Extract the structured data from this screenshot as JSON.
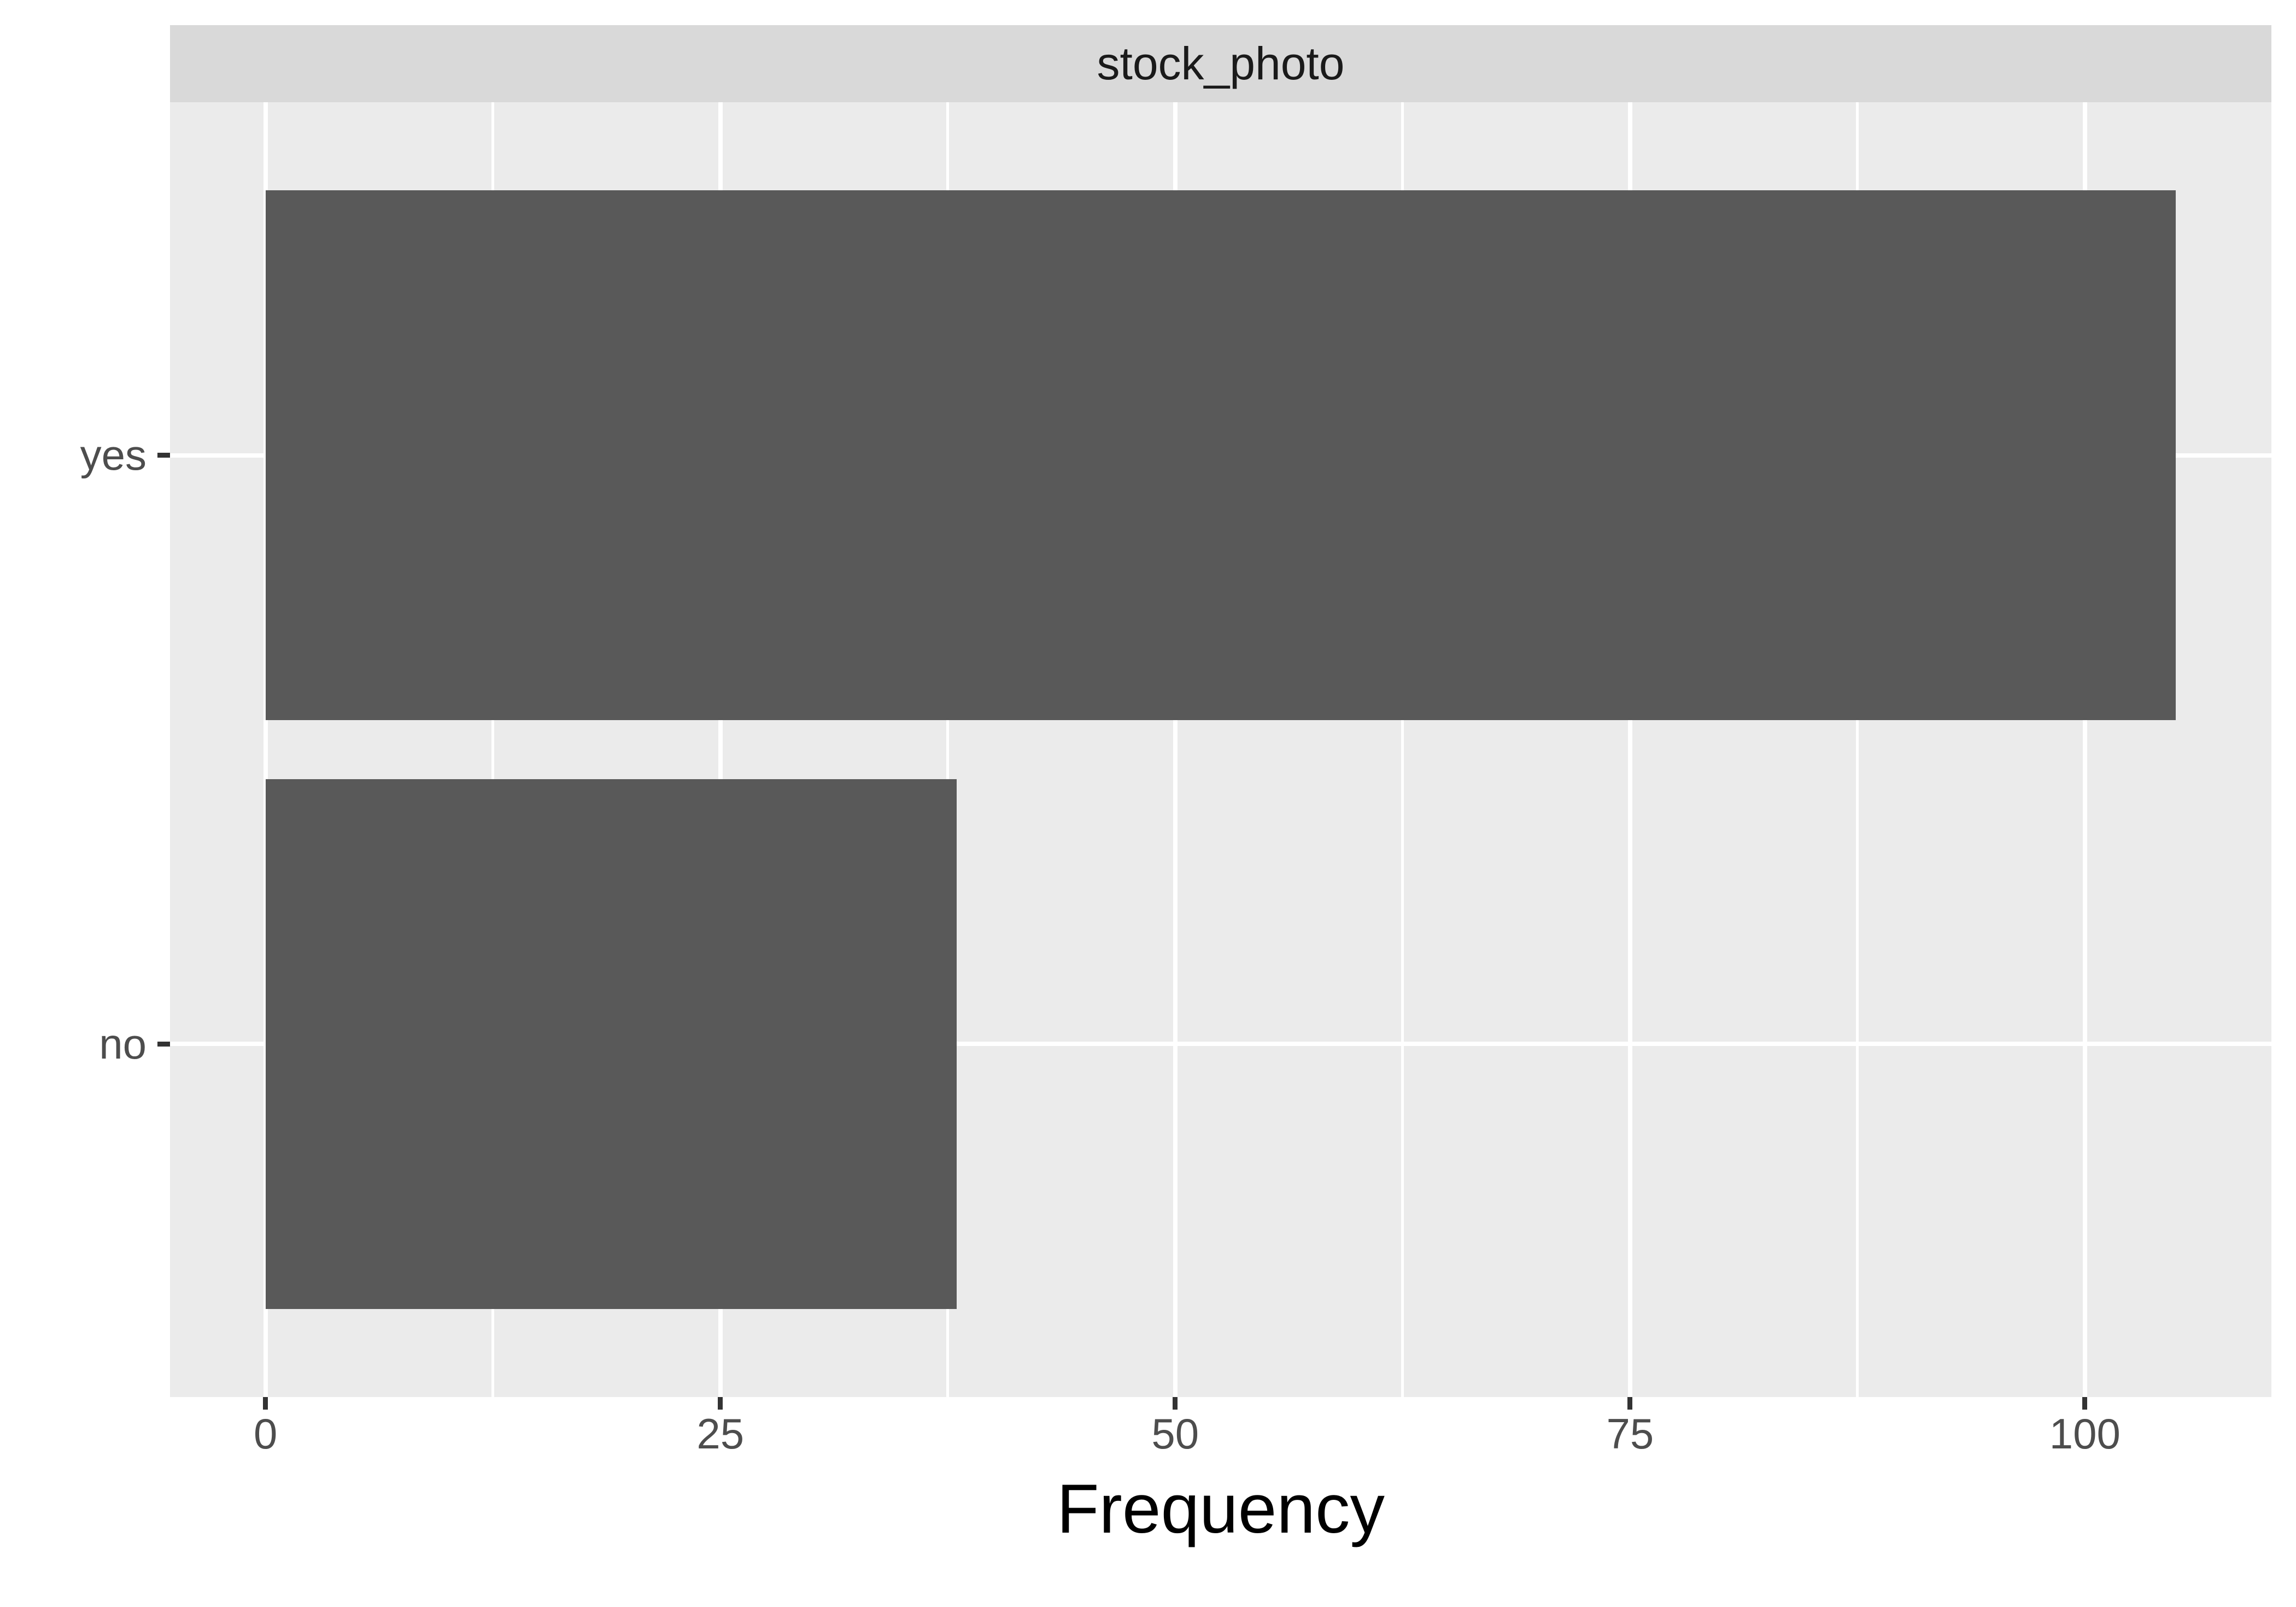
{
  "figure": {
    "background": "#FFFFFF"
  },
  "strip": {
    "bg": "#D9D9D9"
  },
  "chart_data": {
    "type": "bar",
    "orientation": "horizontal",
    "title": "stock_photo",
    "xlabel": "Frequency",
    "ylabel": "",
    "categories": [
      "yes",
      "no"
    ],
    "values": [
      105,
      38
    ],
    "x_ticks": [
      0,
      25,
      50,
      75,
      100
    ],
    "x_minor_ticks": [
      12.5,
      37.5,
      62.5,
      87.5
    ],
    "xlim": [
      -5.25,
      110.25
    ],
    "bar_rel_width": 0.9,
    "grid": "on",
    "legend": "none",
    "bar_color": "#595959",
    "panel_bg": "#EBEBEB",
    "strip_bg": "#D9D9D9",
    "grid_color": "#FFFFFF",
    "tick_color": "#333333",
    "tick_label_color": "#4D4D4D",
    "strip_text_color": "#1A1A1A",
    "axis_title_color": "#000000"
  }
}
